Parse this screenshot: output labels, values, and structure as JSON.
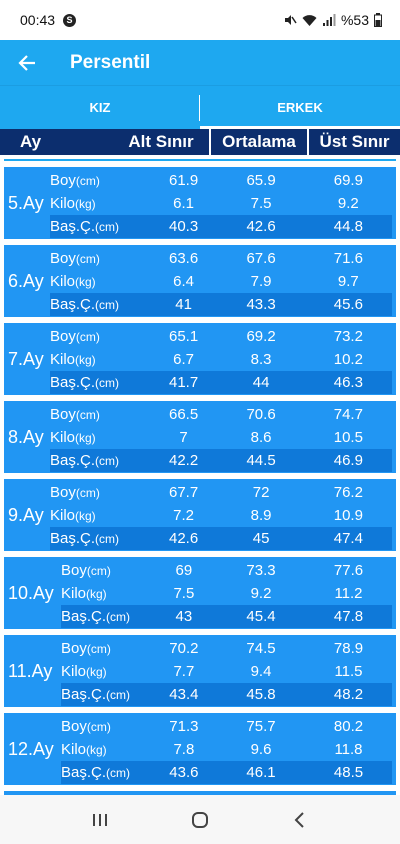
{
  "status": {
    "time": "00:43",
    "app_badge": "S",
    "battery": "%53"
  },
  "appbar": {
    "title": "Persentil"
  },
  "tabs": [
    {
      "label": "KIZ",
      "active": false
    },
    {
      "label": "ERKEK",
      "active": true
    }
  ],
  "table_header": {
    "ay": "Ay",
    "alt": "Alt Sınır",
    "ortalama": "Ortalama",
    "ust": "Üst Sınır"
  },
  "row_labels": {
    "boy": "Boy",
    "boy_unit": "(cm)",
    "kilo": "Kilo",
    "kilo_unit": "(kg)",
    "bas": "Baş.Ç.",
    "bas_unit": "(cm)"
  },
  "months": [
    {
      "label": "5.Ay",
      "boy": [
        "61.9",
        "65.9",
        "69.9"
      ],
      "kilo": [
        "6.1",
        "7.5",
        "9.2"
      ],
      "bas": [
        "40.3",
        "42.6",
        "44.8"
      ]
    },
    {
      "label": "6.Ay",
      "boy": [
        "63.6",
        "67.6",
        "71.6"
      ],
      "kilo": [
        "6.4",
        "7.9",
        "9.7"
      ],
      "bas": [
        "41",
        "43.3",
        "45.6"
      ]
    },
    {
      "label": "7.Ay",
      "boy": [
        "65.1",
        "69.2",
        "73.2"
      ],
      "kilo": [
        "6.7",
        "8.3",
        "10.2"
      ],
      "bas": [
        "41.7",
        "44",
        "46.3"
      ]
    },
    {
      "label": "8.Ay",
      "boy": [
        "66.5",
        "70.6",
        "74.7"
      ],
      "kilo": [
        "7",
        "8.6",
        "10.5"
      ],
      "bas": [
        "42.2",
        "44.5",
        "46.9"
      ]
    },
    {
      "label": "9.Ay",
      "boy": [
        "67.7",
        "72",
        "76.2"
      ],
      "kilo": [
        "7.2",
        "8.9",
        "10.9"
      ],
      "bas": [
        "42.6",
        "45",
        "47.4"
      ]
    },
    {
      "label": "10.Ay",
      "boy": [
        "69",
        "73.3",
        "77.6"
      ],
      "kilo": [
        "7.5",
        "9.2",
        "11.2"
      ],
      "bas": [
        "43",
        "45.4",
        "47.8"
      ]
    },
    {
      "label": "11.Ay",
      "boy": [
        "70.2",
        "74.5",
        "78.9"
      ],
      "kilo": [
        "7.7",
        "9.4",
        "11.5"
      ],
      "bas": [
        "43.4",
        "45.8",
        "48.2"
      ]
    },
    {
      "label": "12.Ay",
      "boy": [
        "71.3",
        "75.7",
        "80.2"
      ],
      "kilo": [
        "7.8",
        "9.6",
        "11.8"
      ],
      "bas": [
        "43.6",
        "46.1",
        "48.5"
      ]
    }
  ],
  "colors": {
    "appbar": "#1ea8f0",
    "header": "#0c2e6e",
    "block": "#2196f3",
    "block_alt": "#0f79d9"
  }
}
